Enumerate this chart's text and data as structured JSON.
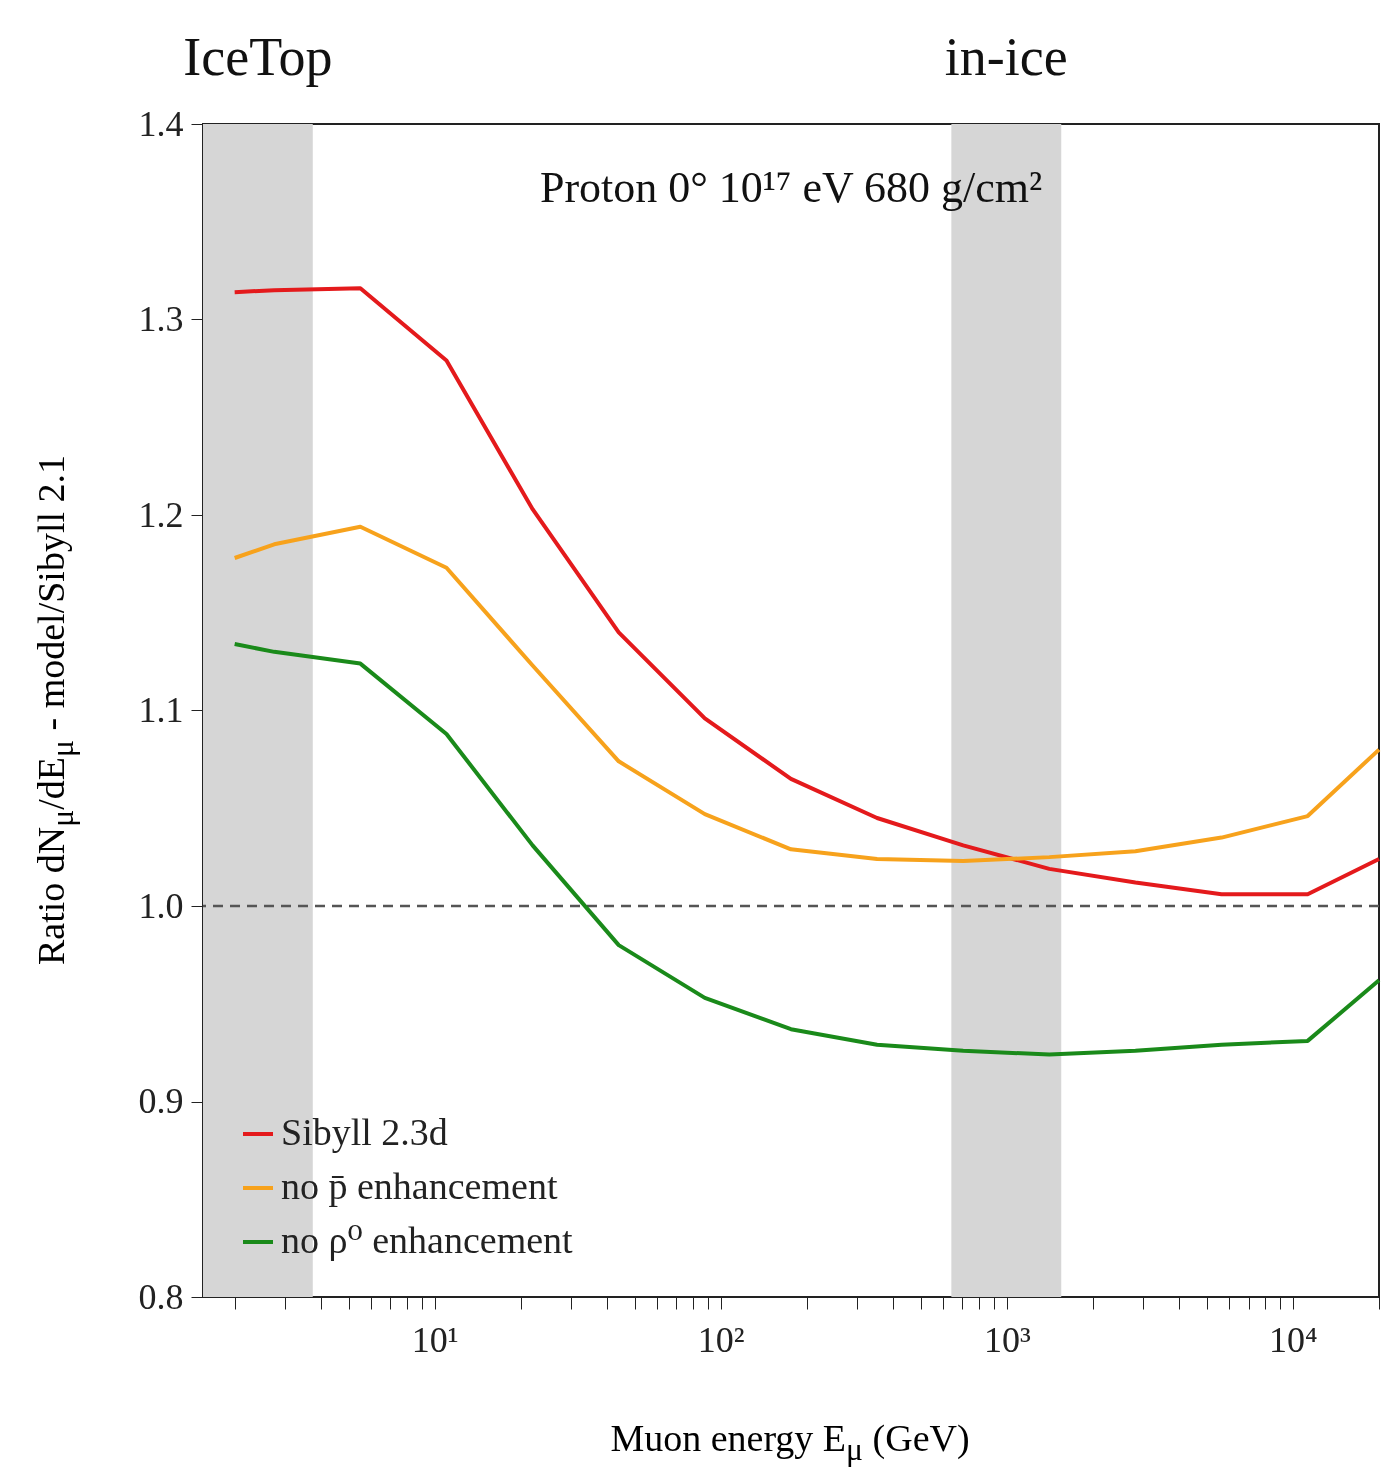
{
  "chart_data": {
    "type": "line",
    "title": "Proton 0° 10¹⁷ eV 680 g/cm²",
    "xlabel": "Muon energy E$_{μ}$ (GeV)",
    "ylabel": "Ratio dN$_{μ}$/dE$_{μ}$ - model/Sibyll 2.1",
    "log": "x",
    "xlim": [
      1.55,
      20000
    ],
    "ylim": [
      0.8,
      1.4
    ],
    "xticks": [
      {
        "value": 2,
        "label": null
      },
      {
        "value": 3,
        "label": null
      },
      {
        "value": 4,
        "label": null
      },
      {
        "value": 5,
        "label": null
      },
      {
        "value": 6,
        "label": null
      },
      {
        "value": 7,
        "label": null
      },
      {
        "value": 8,
        "label": null
      },
      {
        "value": 9,
        "label": null
      },
      {
        "value": 10,
        "label": "10¹"
      },
      {
        "value": 20,
        "label": null
      },
      {
        "value": 30,
        "label": null
      },
      {
        "value": 40,
        "label": null
      },
      {
        "value": 50,
        "label": null
      },
      {
        "value": 60,
        "label": null
      },
      {
        "value": 70,
        "label": null
      },
      {
        "value": 80,
        "label": null
      },
      {
        "value": 90,
        "label": null
      },
      {
        "value": 100,
        "label": "10²"
      },
      {
        "value": 200,
        "label": null
      },
      {
        "value": 300,
        "label": null
      },
      {
        "value": 400,
        "label": null
      },
      {
        "value": 500,
        "label": null
      },
      {
        "value": 600,
        "label": null
      },
      {
        "value": 700,
        "label": null
      },
      {
        "value": 800,
        "label": null
      },
      {
        "value": 900,
        "label": null
      },
      {
        "value": 1000,
        "label": "10³"
      },
      {
        "value": 2000,
        "label": null
      },
      {
        "value": 3000,
        "label": null
      },
      {
        "value": 4000,
        "label": null
      },
      {
        "value": 5000,
        "label": null
      },
      {
        "value": 6000,
        "label": null
      },
      {
        "value": 7000,
        "label": null
      },
      {
        "value": 8000,
        "label": null
      },
      {
        "value": 9000,
        "label": null
      },
      {
        "value": 10000,
        "label": "10⁴"
      },
      {
        "value": 20000,
        "label": null
      }
    ],
    "yticks": [
      0.8,
      0.9,
      {
        "value": 1,
        "label": "1.0"
      },
      1.1,
      1.2,
      1.3,
      1.4
    ],
    "x": [
      2,
      2.75,
      5.5,
      11,
      22,
      44,
      88,
      176,
      352,
      704,
      1408,
      2816,
      5632,
      11264,
      20000
    ],
    "series": [
      {
        "name": "Sibyll 2.3d",
        "color": "#e41a1c",
        "values": [
          1.314,
          1.315,
          1.316,
          1.279,
          1.203,
          1.14,
          1.096,
          1.065,
          1.045,
          1.031,
          1.019,
          1.012,
          1.006,
          1.006,
          1.024
        ]
      },
      {
        "name": "no p̄ enhancement",
        "color": "#f7a21c",
        "values": [
          1.178,
          1.185,
          1.194,
          1.173,
          1.123,
          1.074,
          1.047,
          1.029,
          1.024,
          1.023,
          1.025,
          1.028,
          1.035,
          1.046,
          1.08
        ]
      },
      {
        "name": "no ρ⁰ enhancement",
        "color": "#1a8a1a",
        "values": [
          1.134,
          1.13,
          1.124,
          1.088,
          1.031,
          0.98,
          0.953,
          0.937,
          0.929,
          0.926,
          0.924,
          0.926,
          0.929,
          0.931,
          0.962
        ]
      }
    ],
    "ref_lines": [
      {
        "axis": "y",
        "value": 1,
        "color": "#555555",
        "line_style": "dashed"
      }
    ],
    "bands": [
      {
        "axis": "x",
        "from": 1.55,
        "to": 3.75,
        "label": "IceTop",
        "color": "#d6d6d6"
      },
      {
        "axis": "x",
        "from": 640,
        "to": 1550,
        "label": "in-ice",
        "color": "#d6d6d6"
      }
    ],
    "legend": "bottom left",
    "marker": "none",
    "line_style": "solid",
    "grid": false
  }
}
